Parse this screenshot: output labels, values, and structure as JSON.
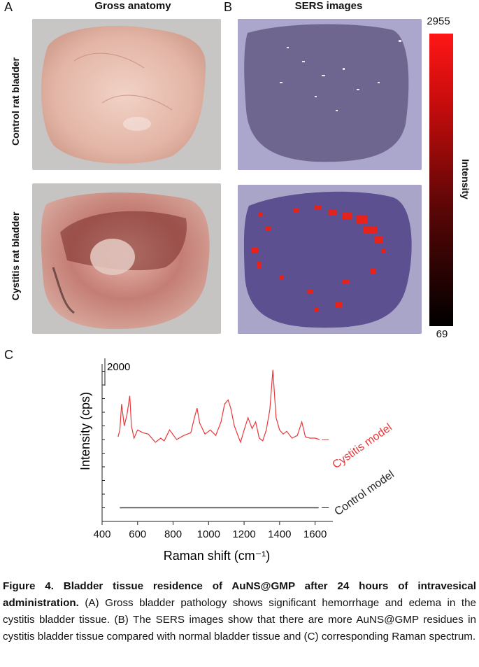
{
  "panel_a": {
    "letter": "A",
    "title": "Gross anatomy",
    "row_labels": [
      "Control rat bladder",
      "Cystitis rat bladder"
    ]
  },
  "panel_b": {
    "letter": "B",
    "title": "SERS images",
    "colorbar": {
      "max": "2955",
      "min": "69",
      "label": "Intensity",
      "colors": [
        "#000000",
        "#ff0000"
      ]
    }
  },
  "panel_c": {
    "letter": "C"
  },
  "chart_data": {
    "type": "line",
    "xlabel": "Raman shift (cm⁻¹)",
    "ylabel": "Intensity (cps)",
    "xlim": [
      400,
      1700
    ],
    "xticks": [
      400,
      600,
      800,
      1000,
      1200,
      1400,
      1600
    ],
    "scale_bar": {
      "label": "2000",
      "value": 2000
    },
    "series": [
      {
        "name": "Cystitis model",
        "color": "#e8383a",
        "x": [
          490,
          500,
          510,
          525,
          540,
          556,
          565,
          580,
          600,
          630,
          660,
          700,
          730,
          750,
          780,
          820,
          860,
          900,
          920,
          935,
          950,
          980,
          1010,
          1040,
          1070,
          1090,
          1110,
          1125,
          1145,
          1165,
          1180,
          1200,
          1222,
          1245,
          1265,
          1285,
          1305,
          1325,
          1345,
          1362,
          1380,
          1400,
          1420,
          1440,
          1470,
          1500,
          1525,
          1545,
          1570,
          1600,
          1625
        ],
        "y": [
          6200,
          6700,
          8600,
          7000,
          7800,
          9200,
          7000,
          6100,
          6700,
          6500,
          6400,
          5800,
          6100,
          5900,
          6700,
          6000,
          6300,
          6500,
          7600,
          8300,
          7200,
          6400,
          6700,
          6300,
          7300,
          8600,
          8900,
          8300,
          7000,
          6300,
          5800,
          6700,
          7600,
          6800,
          7300,
          6100,
          5900,
          6700,
          8200,
          11100,
          7600,
          6700,
          6400,
          6600,
          6100,
          6300,
          7300,
          6200,
          6100,
          6100,
          6000
        ]
      },
      {
        "name": "Control model",
        "color": "#444444",
        "x": [
          500,
          1620
        ],
        "y": [
          1000,
          1000
        ]
      }
    ]
  },
  "caption": {
    "bold": "Figure 4. Bladder tissue residence of AuNS@GMP after 24 hours of intravesical administration.",
    "text": " (A) Gross bladder pathology shows significant hemorrhage and edema in the cystitis bladder tissue. (B) The SERS images show that there are more AuNS@GMP residues in cystitis bladder tissue compared with normal bladder tissue and (C) corresponding Raman spectrum."
  }
}
